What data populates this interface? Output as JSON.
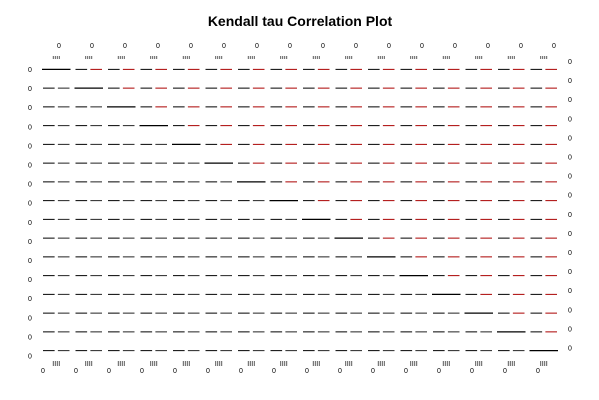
{
  "chart_data": {
    "type": "scatter",
    "title": "Kendall tau Correlation Plot",
    "xlabel": "",
    "ylabel": "",
    "grid": false,
    "legend": "none",
    "n_panels_x": 16,
    "n_panels_y": 16,
    "bottom_tick_labels": [
      "0",
      "0",
      "0",
      "0",
      "0",
      "0",
      "0",
      "0",
      "0",
      "0",
      "0",
      "0",
      "0",
      "0",
      "0",
      "0"
    ],
    "top_tick_labels": [
      "0",
      "0",
      "0",
      "0",
      "0",
      "0",
      "0",
      "0",
      "0",
      "0",
      "0",
      "0",
      "0",
      "0",
      "0",
      "0"
    ],
    "left_tick_labels": [
      "0",
      "0",
      "0",
      "0",
      "0",
      "0",
      "0",
      "0",
      "0",
      "0",
      "0",
      "0",
      "0",
      "0",
      "0",
      "0"
    ],
    "right_tick_labels": [
      "0",
      "0",
      "0",
      "0",
      "0",
      "0",
      "0",
      "0",
      "0",
      "0",
      "0",
      "0",
      "0",
      "0",
      "0",
      "0"
    ],
    "colors": {
      "points": "#000000",
      "lower_fit": "#222222",
      "upper_fit": "#aa0000",
      "background": "#ffffff"
    }
  }
}
